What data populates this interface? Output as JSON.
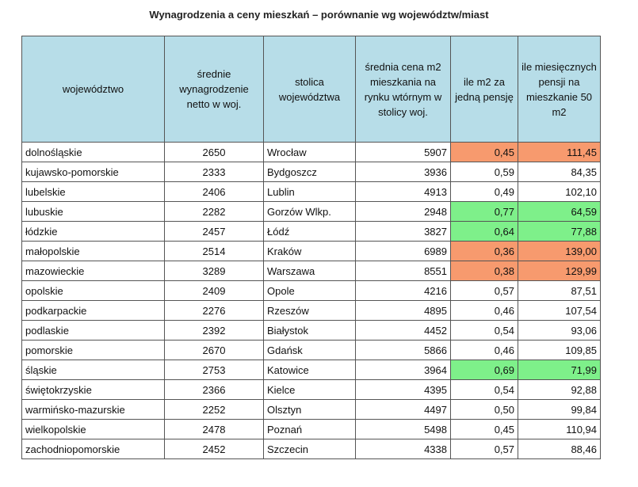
{
  "title": "Wynagrodzenia a ceny mieszkań – porównanie wg województw/miast",
  "table": {
    "header": [
      "województwo",
      "średnie wynagrodzenie netto w woj.",
      "stolica województwa",
      "średnia cena m2 mieszkania na rynku wtórnym w stolicy woj.",
      "ile m2 za jedną pensję",
      "ile miesięcznych pensji na mieszkanie 50 m2"
    ],
    "header_color": "#b7dde8",
    "rows": [
      {
        "cells": [
          "dolnośląskie",
          "2650",
          "Wrocław",
          "5907",
          "0,45",
          "111,45"
        ],
        "highlight": "#f79a6e"
      },
      {
        "cells": [
          "kujawsko-pomorskie",
          "2333",
          "Bydgoszcz",
          "3936",
          "0,59",
          "84,35"
        ]
      },
      {
        "cells": [
          "lubelskie",
          "2406",
          "Lublin",
          "4913",
          "0,49",
          "102,10"
        ]
      },
      {
        "cells": [
          "lubuskie",
          "2282",
          "Gorzów Wlkp.",
          "2948",
          "0,77",
          "64,59"
        ],
        "highlight": "#7ef08a"
      },
      {
        "cells": [
          "łódzkie",
          "2457",
          "Łódź",
          "3827",
          "0,64",
          "77,88"
        ],
        "highlight": "#7ef08a"
      },
      {
        "cells": [
          "małopolskie",
          "2514",
          "Kraków",
          "6989",
          "0,36",
          "139,00"
        ],
        "highlight": "#f79a6e"
      },
      {
        "cells": [
          "mazowieckie",
          "3289",
          "Warszawa",
          "8551",
          "0,38",
          "129,99"
        ],
        "highlight": "#f79a6e"
      },
      {
        "cells": [
          "opolskie",
          "2409",
          "Opole",
          "4216",
          "0,57",
          "87,51"
        ]
      },
      {
        "cells": [
          "podkarpackie",
          "2276",
          "Rzeszów",
          "4895",
          "0,46",
          "107,54"
        ]
      },
      {
        "cells": [
          "podlaskie",
          "2392",
          "Białystok",
          "4452",
          "0,54",
          "93,06"
        ]
      },
      {
        "cells": [
          "pomorskie",
          "2670",
          "Gdańsk",
          "5866",
          "0,46",
          "109,85"
        ]
      },
      {
        "cells": [
          "śląskie",
          "2753",
          "Katowice",
          "3964",
          "0,69",
          "71,99"
        ],
        "highlight": "#7ef08a"
      },
      {
        "cells": [
          "świętokrzyskie",
          "2366",
          "Kielce",
          "4395",
          "0,54",
          "92,88"
        ]
      },
      {
        "cells": [
          "warmińsko-mazurskie",
          "2252",
          "Olsztyn",
          "4497",
          "0,50",
          "99,84"
        ]
      },
      {
        "cells": [
          "wielkopolskie",
          "2478",
          "Poznań",
          "5498",
          "0,45",
          "110,94"
        ]
      },
      {
        "cells": [
          "zachodniopomorskie",
          "2452",
          "Szczecin",
          "4338",
          "0,57",
          "88,46"
        ]
      }
    ]
  }
}
